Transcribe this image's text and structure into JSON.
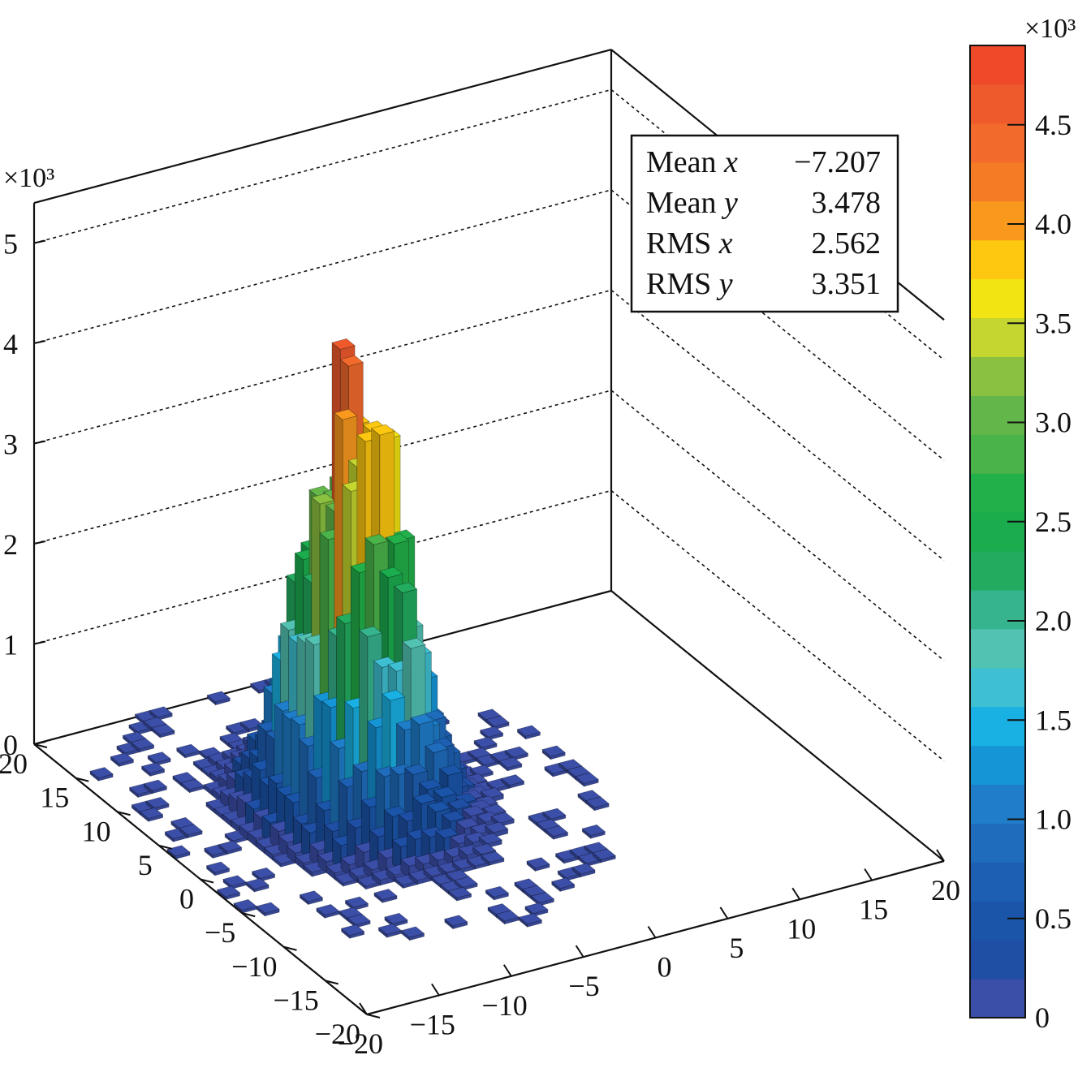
{
  "chart_data": {
    "type": "lego3d",
    "title": "",
    "xlabel": "",
    "ylabel": "",
    "zlabel": "",
    "z_multiplier": "×10³",
    "xlim": [
      -20,
      20
    ],
    "ylim": [
      -20,
      20
    ],
    "zlim": [
      0,
      5.4
    ],
    "x_ticks": [
      "−20",
      "−15",
      "−10",
      "−5",
      "0",
      "5",
      "10",
      "15",
      "20"
    ],
    "y_ticks": [
      "−20",
      "−15",
      "−10",
      "−5",
      "0",
      "5",
      "10",
      "15",
      "20"
    ],
    "z_ticks": [
      "0",
      "1",
      "2",
      "3",
      "4",
      "5"
    ],
    "grid": true,
    "peak": {
      "x": -7.2,
      "y": 3.5,
      "z": 4.2
    },
    "rms": {
      "x": 2.562,
      "y": 3.351
    },
    "stats": {
      "rows": [
        {
          "label": "Mean",
          "var": "x",
          "value": "−7.207"
        },
        {
          "label": "Mean",
          "var": "y",
          "value": "3.478"
        },
        {
          "label": "RMS",
          "var": "x",
          "value": "2.562"
        },
        {
          "label": "RMS",
          "var": "y",
          "value": "3.351"
        }
      ]
    },
    "colorbar": {
      "multiplier": "×10³",
      "min": 0,
      "max": 4.9,
      "ticks": [
        "0",
        "0.5",
        "1.0",
        "1.5",
        "2.0",
        "2.5",
        "3.0",
        "3.5",
        "4.0",
        "4.5"
      ],
      "colors": [
        "#3b4ea8",
        "#1f4fa5",
        "#1a55a9",
        "#1d5fb2",
        "#1f6cbd",
        "#1f7dc9",
        "#1595d6",
        "#19b0e3",
        "#3ec0d2",
        "#52c2b3",
        "#36b48d",
        "#23ac5f",
        "#1bac4e",
        "#22b04a",
        "#4ab34a",
        "#63b649",
        "#8bc140",
        "#c4d62f",
        "#f2e313",
        "#fdc80f",
        "#f8981d",
        "#f57c25",
        "#f26a2c",
        "#ef5a2d",
        "#ee4a2a"
      ]
    }
  }
}
